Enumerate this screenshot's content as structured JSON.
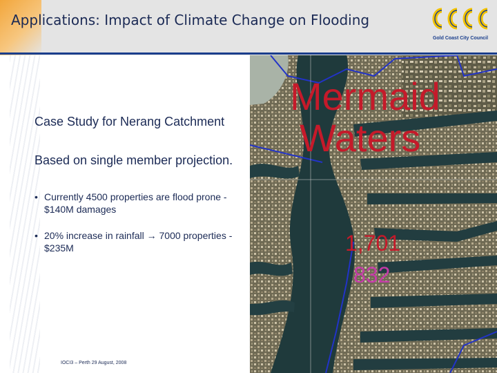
{
  "header": {
    "title": "Applications:  Impact of Climate Change on Flooding",
    "logo_name": "Gold Coast City Council"
  },
  "content": {
    "para1": "Case Study for Nerang Catchment",
    "para2": "Based on single member projection.",
    "bullets": [
      "Currently 4500 properties are flood prone - $140M damages",
      "20% increase in rainfall → 7000 properties - $235M"
    ]
  },
  "footer": {
    "text": "IOCI3 – Perth 29 August, 2008"
  },
  "map": {
    "title_line1": "Mermaid",
    "title_line2": "Waters",
    "value1": "1,701",
    "value2": "832"
  },
  "colors": {
    "title_text": "#1b2a55",
    "accent_blue": "#1a3e8c",
    "map_label_red": "#c51a2a",
    "map_value_magenta": "#c53aa8",
    "logo_yellow": "#f2c200"
  }
}
